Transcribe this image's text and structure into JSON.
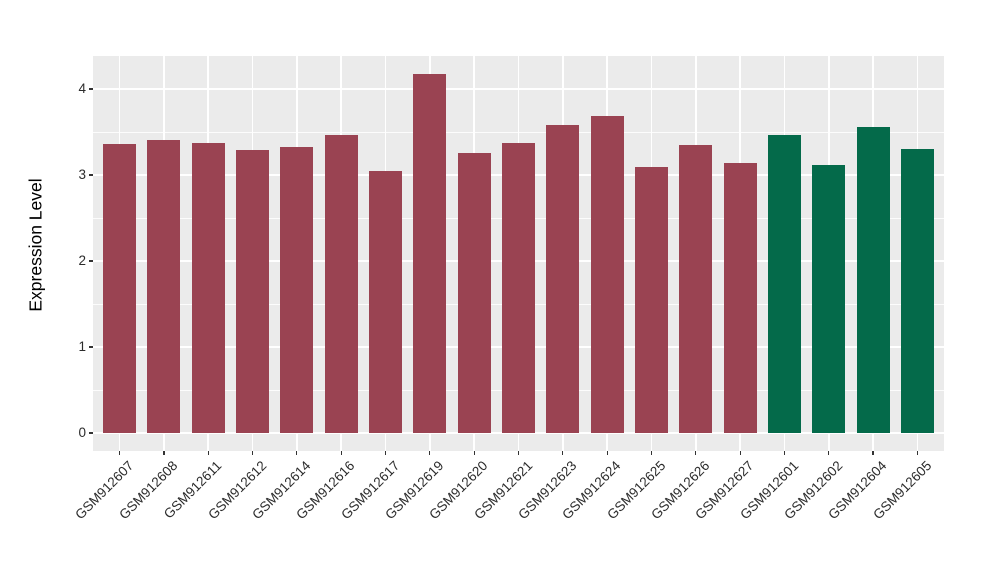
{
  "chart_data": {
    "type": "bar",
    "title": "",
    "xlabel": "",
    "ylabel": "Expression Level",
    "categories": [
      "GSM912607",
      "GSM912608",
      "GSM912611",
      "GSM912612",
      "GSM912614",
      "GSM912616",
      "GSM912617",
      "GSM912619",
      "GSM912620",
      "GSM912621",
      "GSM912623",
      "GSM912624",
      "GSM912625",
      "GSM912626",
      "GSM912627",
      "GSM912601",
      "GSM912602",
      "GSM912604",
      "GSM912605"
    ],
    "values": [
      3.36,
      3.41,
      3.37,
      3.29,
      3.32,
      3.47,
      3.05,
      4.17,
      3.26,
      3.37,
      3.58,
      3.69,
      3.09,
      3.35,
      3.14,
      3.47,
      3.12,
      3.56,
      3.3
    ],
    "bar_colors": [
      "#9A4352",
      "#9A4352",
      "#9A4352",
      "#9A4352",
      "#9A4352",
      "#9A4352",
      "#9A4352",
      "#9A4352",
      "#9A4352",
      "#9A4352",
      "#9A4352",
      "#9A4352",
      "#9A4352",
      "#9A4352",
      "#9A4352",
      "#046A4A",
      "#046A4A",
      "#046A4A",
      "#046A4A"
    ],
    "palette": {
      "maroon": "#9A4352",
      "green": "#046A4A"
    },
    "y_ticks": [
      0,
      1,
      2,
      3,
      4
    ],
    "y_minor_ticks": [
      0.5,
      1.5,
      2.5,
      3.5
    ],
    "ylim": [
      -0.21,
      4.38
    ],
    "grid": "on",
    "legend": "none",
    "panel_bg": "#EBEBEB",
    "grid_color": "#FFFFFF"
  }
}
